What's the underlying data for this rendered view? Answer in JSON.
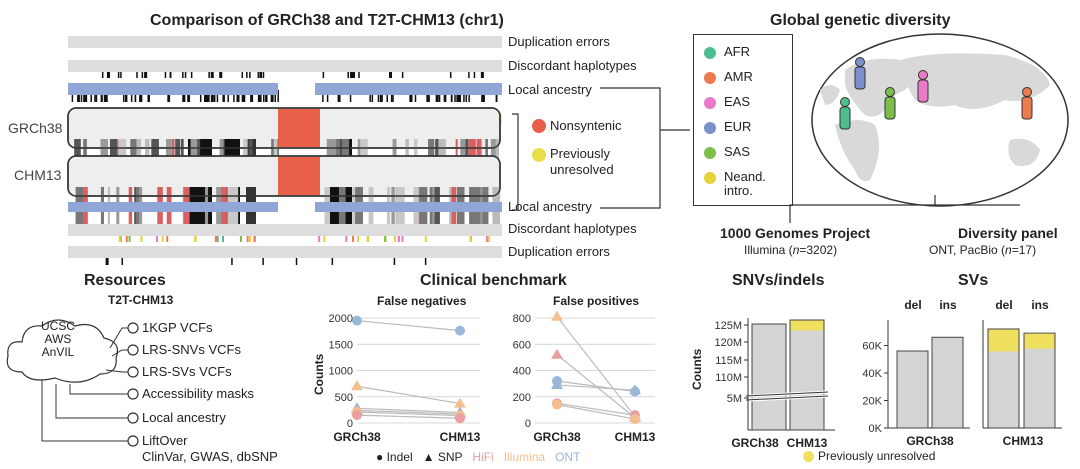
{
  "chromosome_panel": {
    "title": "Comparison of GRCh38 and T2T-CHM13 (chr1)",
    "track_labels_top": [
      "Duplication errors",
      "Discordant haplotypes",
      "Local ancestry"
    ],
    "track_labels_bottom": [
      "Local ancestry",
      "Discordant haplotypes",
      "Duplication errors"
    ],
    "assembly_labels": [
      "GRCh38",
      "CHM13"
    ],
    "legend": [
      {
        "label": "Nonsyntenic",
        "color": "#e8604a"
      },
      {
        "label": "Previously\nunresolved",
        "color": "#e6df4a"
      }
    ]
  },
  "diversity_panel": {
    "title": "Global genetic diversity",
    "populations": [
      {
        "code": "AFR",
        "color": "#4dbf8e"
      },
      {
        "code": "AMR",
        "color": "#ee7a50"
      },
      {
        "code": "EAS",
        "color": "#e87ac8"
      },
      {
        "code": "EUR",
        "color": "#7b8fcc"
      },
      {
        "code": "SAS",
        "color": "#7bbf4a"
      },
      {
        "code": "Neand.\nintro.",
        "color": "#e6d23a"
      }
    ],
    "project1": {
      "name": "1000 Genomes Project",
      "detail_prefix": "Illumina (",
      "n": "n",
      "detail_suffix": "=3202)"
    },
    "project2": {
      "name": "Diversity panel",
      "detail_prefix": "ONT, PacBio (",
      "n": "n",
      "detail_suffix": "=17)"
    }
  },
  "resources_panel": {
    "title": "Resources",
    "subtitle": "T2T-CHM13",
    "cloud": [
      "UCSC",
      "AWS",
      "AnVIL"
    ],
    "items": [
      "1KGP VCFs",
      "LRS-SNVs VCFs",
      "LRS-SVs VCFs",
      "Accessibility masks",
      "Local ancestry",
      "LiftOver"
    ],
    "liftover_detail": "ClinVar, GWAS, dbSNP"
  },
  "benchmark_panel": {
    "title": "Clinical benchmark",
    "legend": [
      {
        "label": "Indel",
        "symbol": "●"
      },
      {
        "label": "SNP",
        "symbol": "▲"
      },
      {
        "label": "HiFi",
        "color": "#e8a0a0"
      },
      {
        "label": "Illumina",
        "color": "#f2c090"
      },
      {
        "label": "ONT",
        "color": "#9ab7d8"
      }
    ],
    "colors": {
      "HiFi": "#e8a0a0",
      "Illumina": "#f2c090",
      "ONT": "#9ab7d8"
    }
  },
  "svn_panel": {
    "title": "SNVs/indels",
    "legend_label": "Previously unresolved",
    "legend_color": "#f0e060"
  },
  "sv_panel": {
    "title": "SVs"
  },
  "chart_data": [
    {
      "type": "line",
      "title": "False negatives",
      "ylabel": "Counts",
      "categories": [
        "GRCh38",
        "CHM13"
      ],
      "ylim": [
        0,
        2000
      ],
      "yticks": [
        "0",
        "500",
        "1000",
        "1500",
        "2000"
      ],
      "series": [
        {
          "marker": "circle",
          "color": "#9ab7d8",
          "values": [
            1950,
            1760
          ]
        },
        {
          "marker": "triangle",
          "color": "#f2c090",
          "values": [
            700,
            370
          ]
        },
        {
          "marker": "triangle",
          "color": "#9ab7d8",
          "values": [
            280,
            200
          ]
        },
        {
          "marker": "triangle",
          "color": "#e8a0a0",
          "values": [
            240,
            170
          ]
        },
        {
          "marker": "circle",
          "color": "#f2c090",
          "values": [
            210,
            140
          ]
        },
        {
          "marker": "circle",
          "color": "#e8a0a0",
          "values": [
            150,
            90
          ]
        }
      ]
    },
    {
      "type": "line",
      "title": "False positives",
      "categories": [
        "GRCh38",
        "CHM13"
      ],
      "ylim": [
        0,
        800
      ],
      "yticks": [
        "0",
        "200",
        "400",
        "600",
        "800"
      ],
      "series": [
        {
          "marker": "triangle",
          "color": "#f2c090",
          "values": [
            810,
            50
          ]
        },
        {
          "marker": "triangle",
          "color": "#e8a0a0",
          "values": [
            520,
            40
          ]
        },
        {
          "marker": "circle",
          "color": "#9ab7d8",
          "values": [
            320,
            240
          ]
        },
        {
          "marker": "triangle",
          "color": "#9ab7d8",
          "values": [
            290,
            250
          ]
        },
        {
          "marker": "circle",
          "color": "#e8a0a0",
          "values": [
            150,
            60
          ]
        },
        {
          "marker": "circle",
          "color": "#f2c090",
          "values": [
            140,
            30
          ]
        }
      ]
    },
    {
      "type": "bar",
      "title": "SNVs/indels",
      "ylabel": "Counts",
      "categories": [
        "GRCh38",
        "CHM13"
      ],
      "yticks": [
        "5M",
        "110M",
        "115M",
        "120M",
        "125M"
      ],
      "series": [
        {
          "name": "Previously unresolved",
          "values": [
            0,
            3
          ]
        }
      ]
    },
    {
      "type": "bar",
      "title": "SVs",
      "categories": [
        "del",
        "ins",
        "del",
        "ins"
      ],
      "groups": [
        "GRCh38",
        "CHM13"
      ],
      "ylim": [
        0,
        80000
      ],
      "yticks": [
        "0K",
        "20K",
        "40K",
        "60K"
      ],
      "series": [
        {
          "values": [
            56000,
            66000,
            56000,
            58000
          ]
        },
        {
          "name": "Previously unresolved",
          "values": [
            0,
            0,
            16000,
            11000
          ]
        }
      ]
    }
  ]
}
